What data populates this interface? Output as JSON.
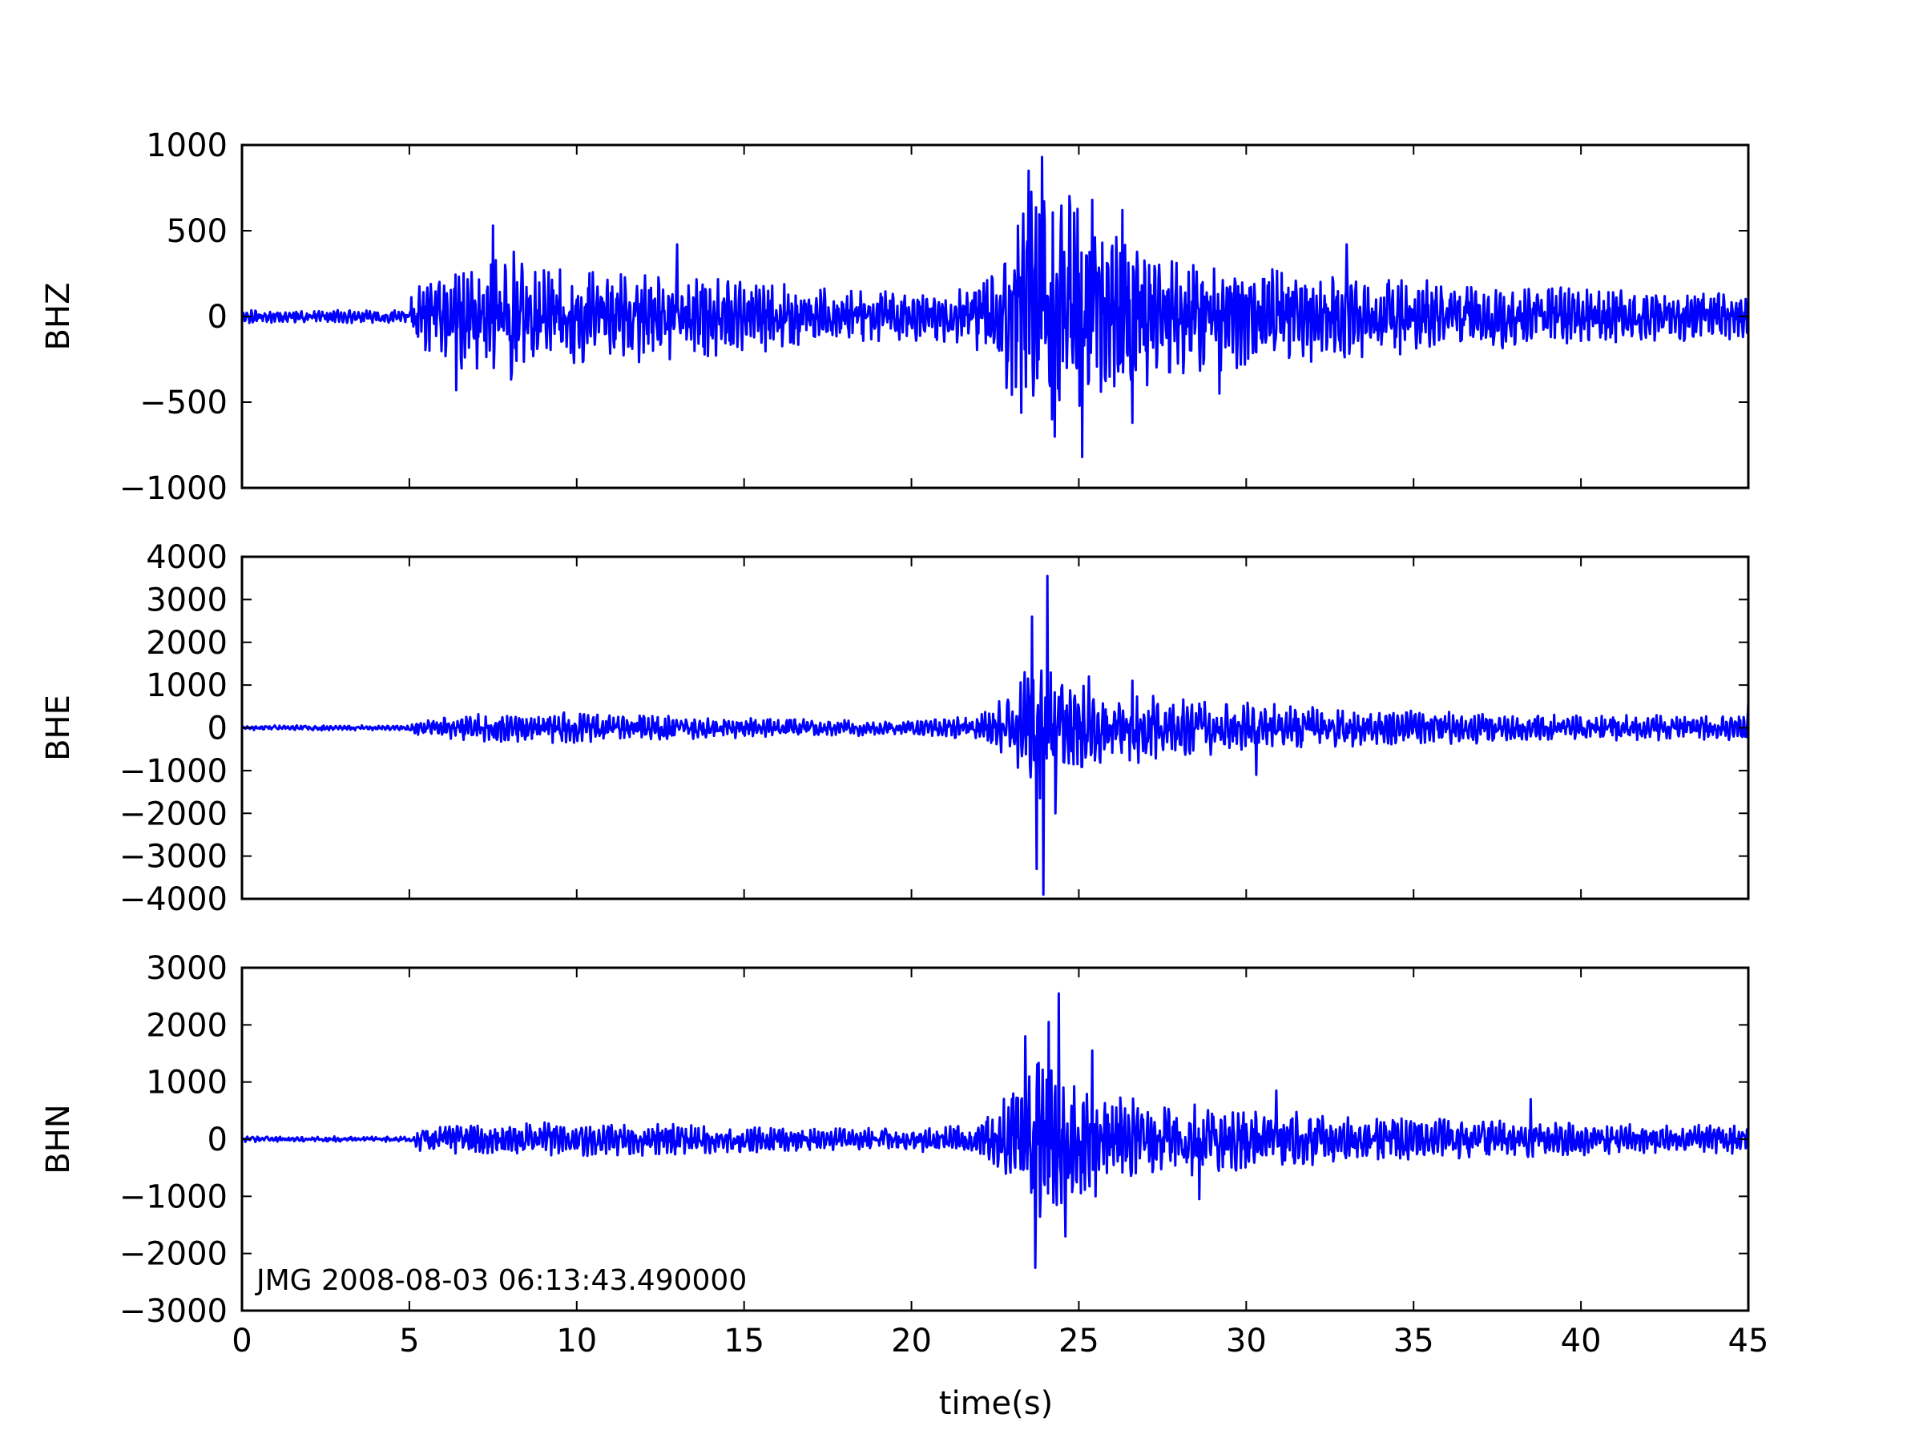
{
  "chart_data": [
    {
      "type": "line",
      "ylabel": "BHZ",
      "ylim": [
        -1000,
        1000
      ],
      "yticks": [
        1000,
        500,
        0,
        -500,
        -1000
      ],
      "xlim": [
        0,
        45
      ],
      "color": "#0000ff",
      "envelope": [
        [
          0,
          40
        ],
        [
          5.0,
          40
        ],
        [
          5.1,
          180
        ],
        [
          6.5,
          320
        ],
        [
          7.5,
          460
        ],
        [
          9,
          300
        ],
        [
          13,
          280
        ],
        [
          15,
          220
        ],
        [
          18,
          160
        ],
        [
          21,
          150
        ],
        [
          22.5,
          280
        ],
        [
          23.5,
          750
        ],
        [
          24.0,
          850
        ],
        [
          25.0,
          720
        ],
        [
          26.0,
          540
        ],
        [
          27.5,
          380
        ],
        [
          30,
          300
        ],
        [
          33,
          250
        ],
        [
          36,
          210
        ],
        [
          40,
          170
        ],
        [
          45,
          140
        ]
      ],
      "peaks": [
        [
          6.4,
          -430
        ],
        [
          7.5,
          530
        ],
        [
          13.0,
          -330
        ],
        [
          13.0,
          420
        ],
        [
          23.5,
          850
        ],
        [
          23.9,
          930
        ],
        [
          24.2,
          -600
        ],
        [
          25.1,
          -820
        ],
        [
          25.4,
          680
        ],
        [
          26.3,
          620
        ],
        [
          26.6,
          -620
        ],
        [
          29.2,
          -450
        ],
        [
          33.0,
          420
        ]
      ],
      "seed": 11
    },
    {
      "type": "line",
      "ylabel": "BHE",
      "ylim": [
        -4000,
        4000
      ],
      "yticks": [
        4000,
        3000,
        2000,
        1000,
        0,
        -1000,
        -2000,
        -3000,
        -4000
      ],
      "xlim": [
        0,
        45
      ],
      "color": "#0000ff",
      "envelope": [
        [
          0,
          60
        ],
        [
          5.0,
          60
        ],
        [
          5.2,
          200
        ],
        [
          7,
          320
        ],
        [
          10,
          380
        ],
        [
          13,
          280
        ],
        [
          16,
          220
        ],
        [
          20,
          180
        ],
        [
          22,
          300
        ],
        [
          23,
          900
        ],
        [
          23.8,
          2000
        ],
        [
          24.5,
          1100
        ],
        [
          26,
          900
        ],
        [
          28,
          700
        ],
        [
          30,
          600
        ],
        [
          33,
          450
        ],
        [
          36,
          380
        ],
        [
          40,
          320
        ],
        [
          45,
          280
        ]
      ],
      "peaks": [
        [
          23.6,
          2600
        ],
        [
          23.75,
          -3300
        ],
        [
          23.95,
          -3900
        ],
        [
          24.05,
          3550
        ],
        [
          24.3,
          -2000
        ],
        [
          25.3,
          -1800
        ],
        [
          25.3,
          1200
        ],
        [
          26.6,
          1100
        ],
        [
          30.3,
          -1100
        ],
        [
          45.0,
          600
        ]
      ],
      "seed": 23
    },
    {
      "type": "line",
      "ylabel": "BHN",
      "ylim": [
        -3000,
        3000
      ],
      "yticks": [
        3000,
        2000,
        1000,
        0,
        -1000,
        -2000,
        -3000
      ],
      "xlim": [
        0,
        45
      ],
      "color": "#0000ff",
      "envelope": [
        [
          0,
          50
        ],
        [
          5.0,
          50
        ],
        [
          5.3,
          220
        ],
        [
          8,
          320
        ],
        [
          11,
          300
        ],
        [
          15,
          260
        ],
        [
          19,
          200
        ],
        [
          22,
          260
        ],
        [
          23,
          900
        ],
        [
          23.8,
          1600
        ],
        [
          24.5,
          1300
        ],
        [
          25.5,
          900
        ],
        [
          27,
          700
        ],
        [
          30,
          550
        ],
        [
          33,
          420
        ],
        [
          37,
          340
        ],
        [
          41,
          280
        ],
        [
          45,
          250
        ]
      ],
      "peaks": [
        [
          23.4,
          1800
        ],
        [
          23.7,
          -2250
        ],
        [
          24.1,
          2050
        ],
        [
          24.4,
          2550
        ],
        [
          24.6,
          -1700
        ],
        [
          25.4,
          1550
        ],
        [
          25.5,
          -1000
        ],
        [
          28.6,
          -1050
        ],
        [
          30.9,
          850
        ],
        [
          38.5,
          700
        ]
      ],
      "seed": 37
    }
  ],
  "x_axis": {
    "label": "time(s)",
    "ticks": [
      0,
      5,
      10,
      15,
      20,
      25,
      30,
      35,
      40,
      45
    ]
  },
  "annotation": "JMG  2008-08-03 06:13:43.490000"
}
